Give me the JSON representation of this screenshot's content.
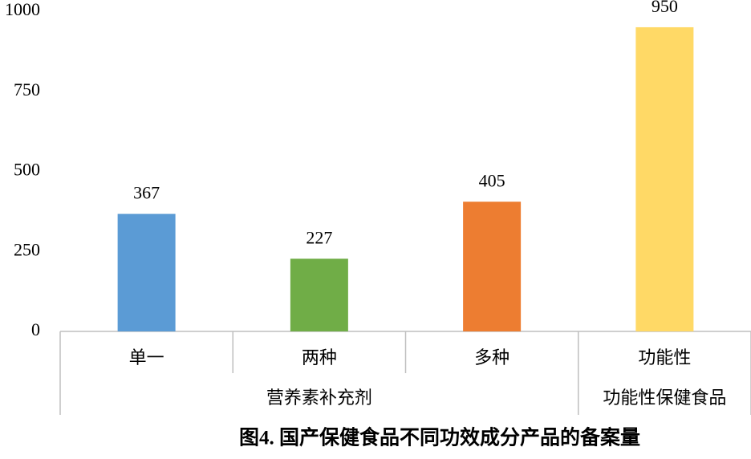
{
  "chart_data": {
    "type": "bar",
    "title": "图4. 国产保健食品不同功效成分产品的备案量",
    "groups": [
      {
        "name": "营养素补充剂",
        "categories": [
          "单一",
          "两种",
          "多种"
        ],
        "values": [
          367,
          227,
          405
        ],
        "colors": [
          "#5b9bd5",
          "#70ad47",
          "#ed7d31"
        ]
      },
      {
        "name": "功能性保健食品",
        "categories": [
          "功能性"
        ],
        "values": [
          950
        ],
        "colors": [
          "#ffd966"
        ]
      }
    ],
    "ylim": [
      0,
      1000
    ],
    "yticks": [
      0,
      250,
      500,
      750,
      1000
    ],
    "grid": false
  }
}
